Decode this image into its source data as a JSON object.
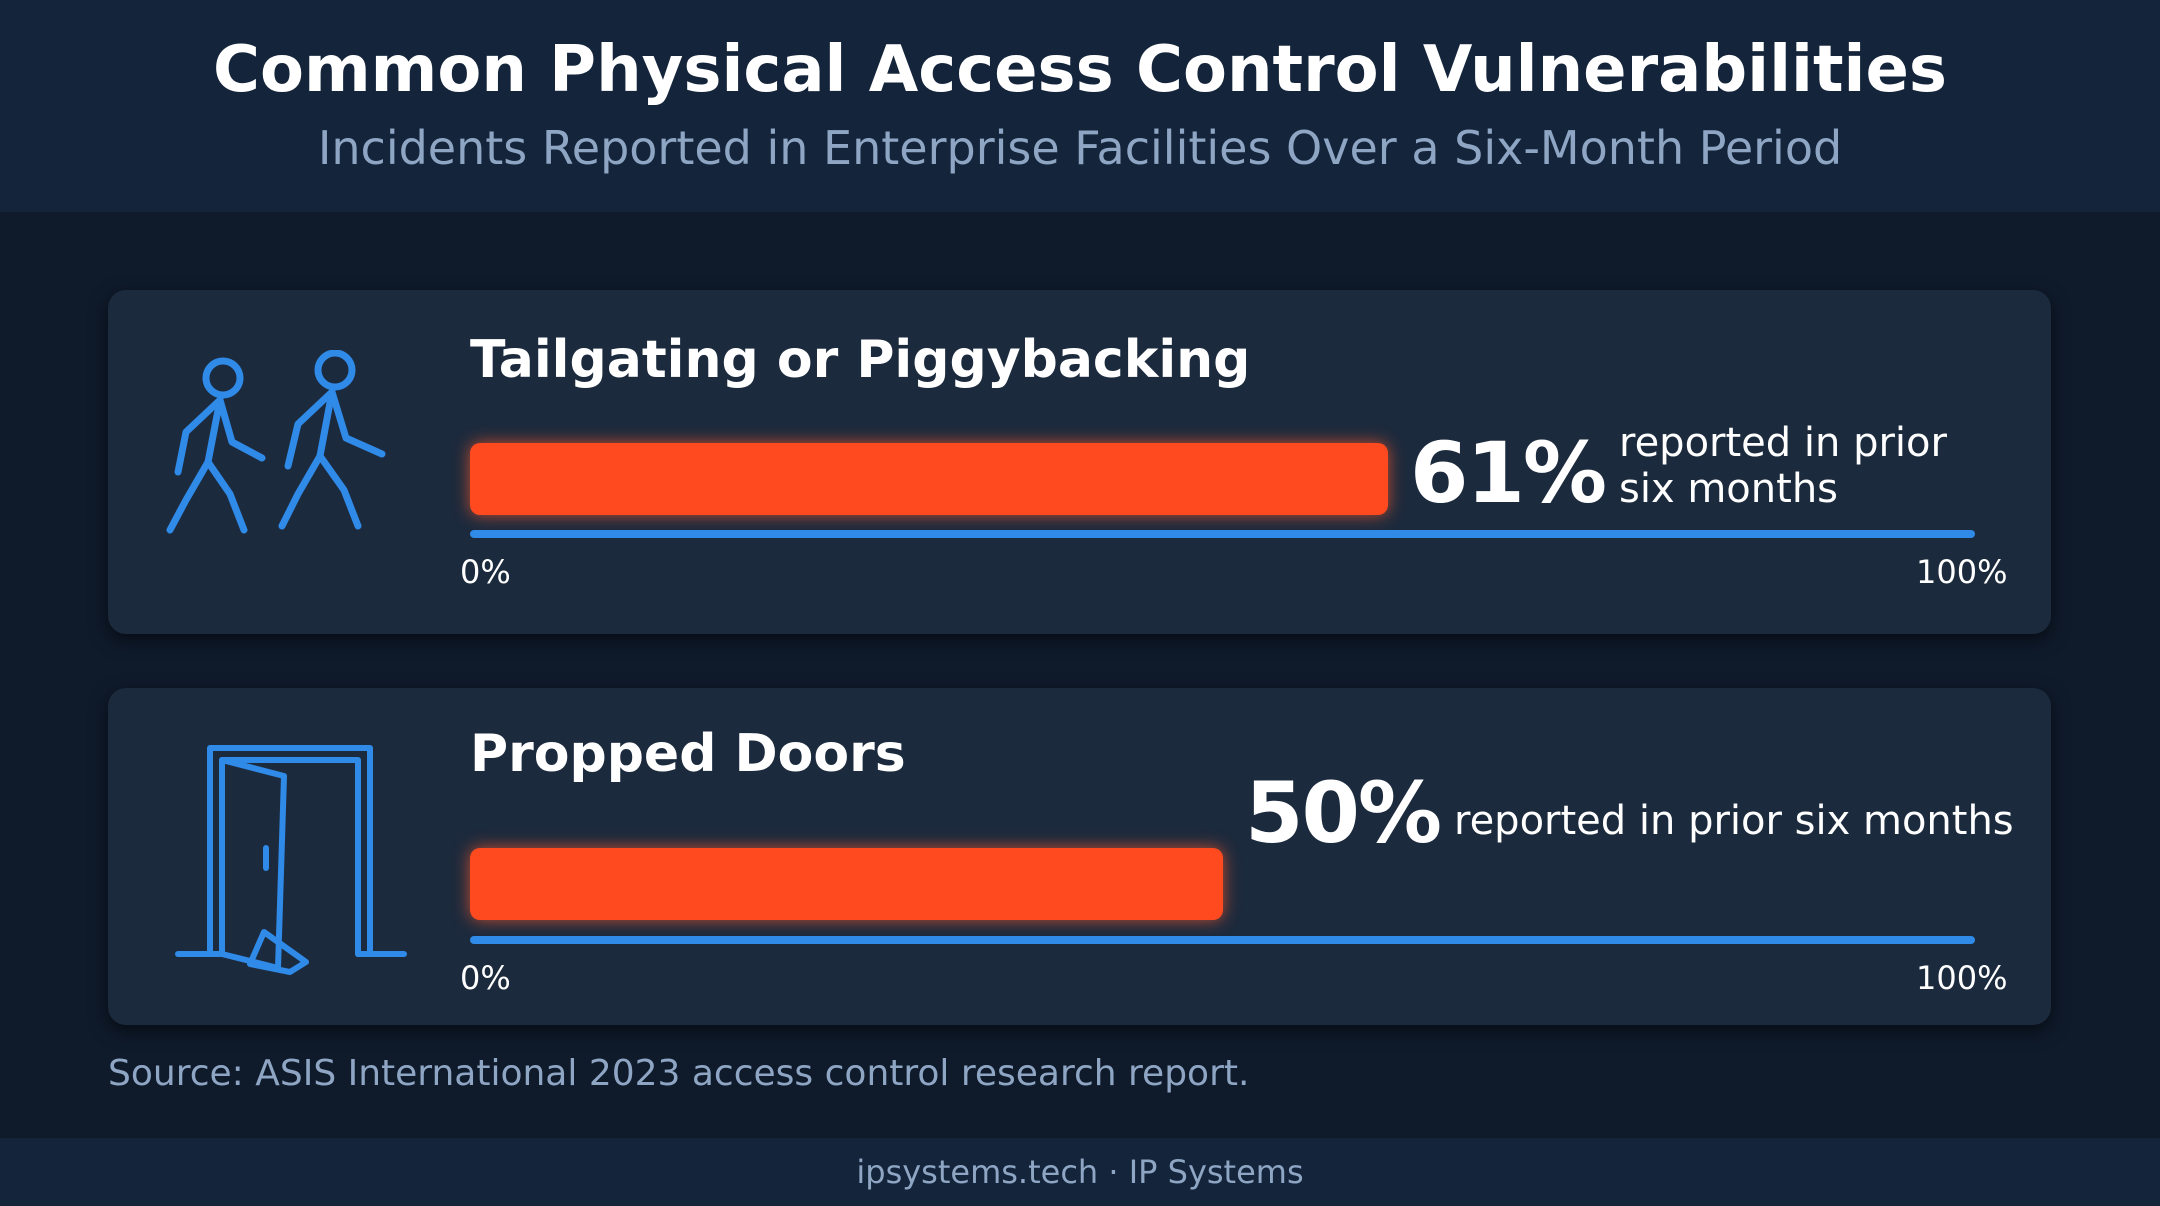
{
  "header": {
    "title": "Common Physical Access Control Vulnerabilities",
    "subtitle": "Incidents Reported in Enterprise Facilities Over a Six-Month Period"
  },
  "colors": {
    "background": "#0f1a2b",
    "card": "#1c2a3d",
    "bar": "#ff4a1f",
    "baseline": "#2f8ae8",
    "icon": "#2f8ae8"
  },
  "chart_data": [
    {
      "type": "bar",
      "orientation": "horizontal",
      "title": "Tailgating or Piggybacking",
      "icon": "people-walking-icon",
      "value": 61,
      "value_label": "61%",
      "note_lines": [
        "reported in prior",
        "six months"
      ],
      "xlim": [
        0,
        100
      ],
      "tick_labels": [
        "0%",
        "100%"
      ]
    },
    {
      "type": "bar",
      "orientation": "horizontal",
      "title": "Propped Doors",
      "icon": "propped-door-icon",
      "value": 50,
      "value_label": "50%",
      "note_lines": [
        "reported in prior six months"
      ],
      "xlim": [
        0,
        100
      ],
      "tick_labels": [
        "0%",
        "100%"
      ]
    }
  ],
  "source": "Source: ASIS International 2023 access control research report.",
  "footer": "ipsystems.tech · IP Systems"
}
